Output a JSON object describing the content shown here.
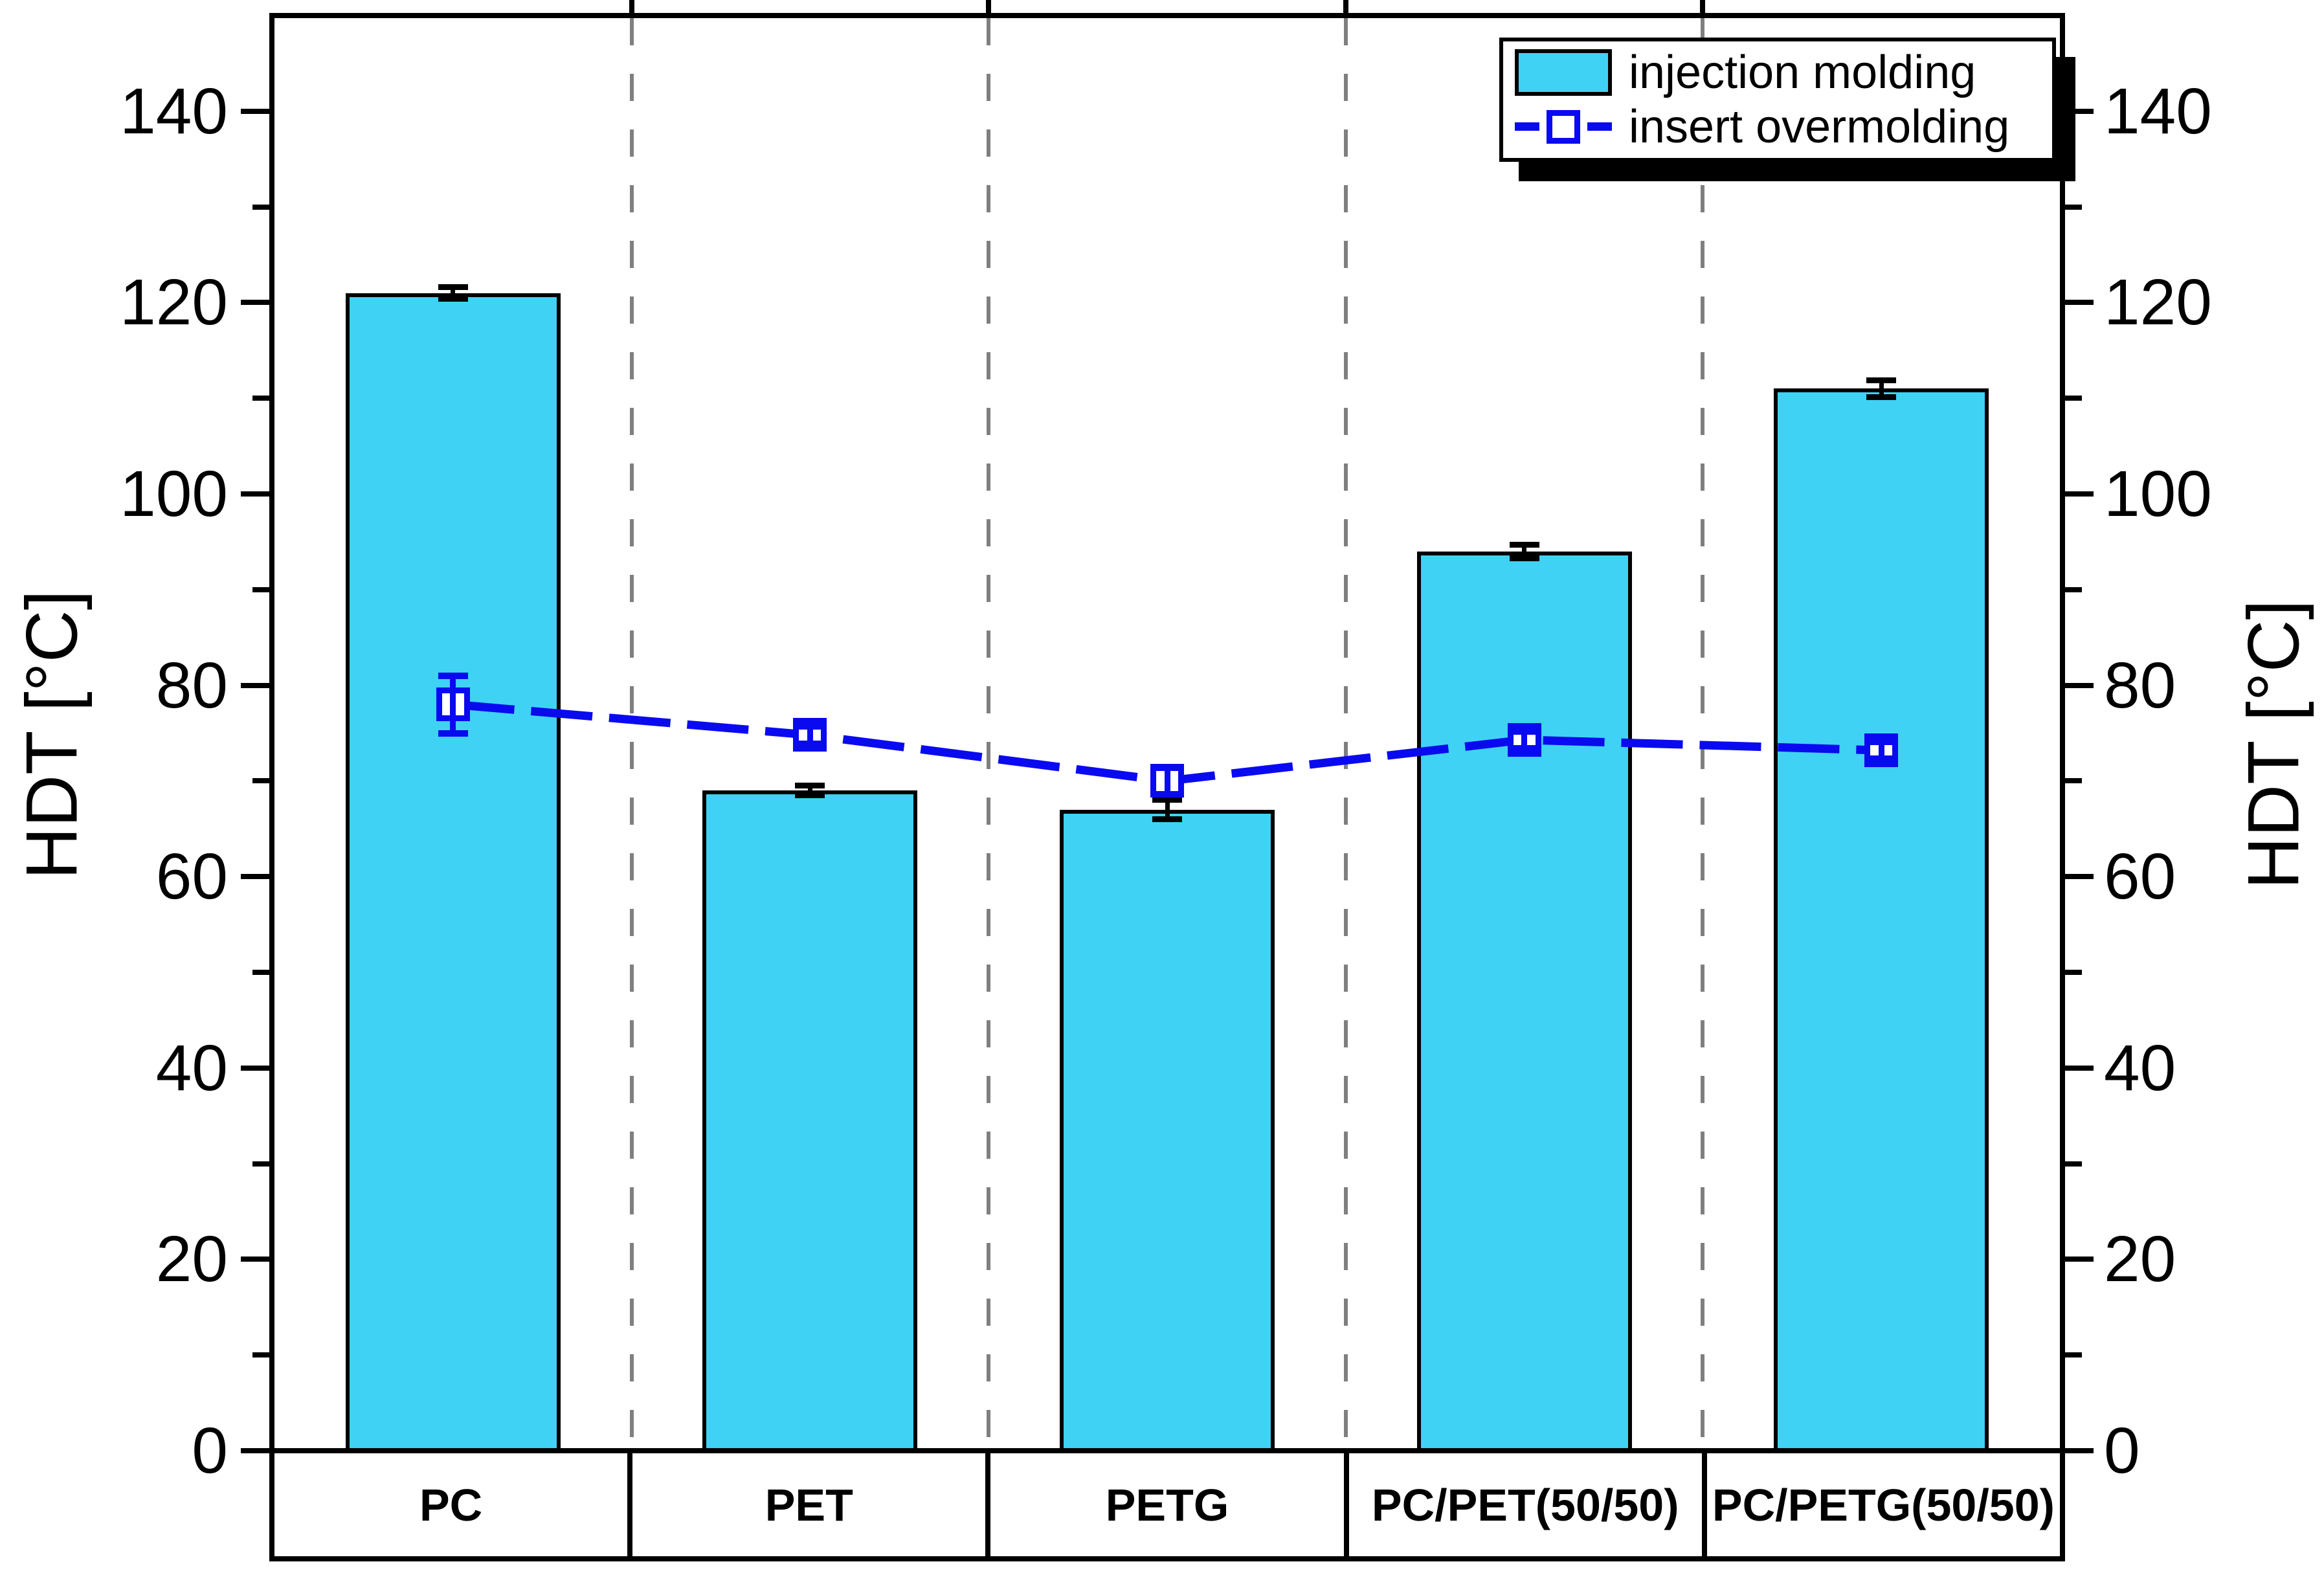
{
  "chart_data": {
    "type": "bar",
    "title": "",
    "categories": [
      "PC",
      "PET",
      "PETG",
      "PC/PET(50/50)",
      "PC/PETG(50/50)"
    ],
    "series": [
      {
        "name": "injection molding",
        "type": "bar",
        "color": "#3fd2f5",
        "values": [
          121,
          69,
          67,
          94,
          111
        ],
        "errors": [
          0.6,
          0.5,
          1.0,
          0.7,
          0.9
        ]
      },
      {
        "name": "insert overmolding",
        "type": "line-scatter",
        "color": "#0a0af0",
        "marker": "open-square",
        "line_style": "dashed",
        "values": [
          78,
          74.8,
          70,
          74.3,
          73.2
        ],
        "errors": [
          3.0,
          0.9,
          1.4,
          0.9,
          0.9
        ]
      }
    ],
    "ylabel": "HDT [°C]",
    "ylabel_right": "HDT [°C]",
    "ylim": [
      0,
      150
    ],
    "yticks": [
      0,
      20,
      40,
      60,
      80,
      100,
      120,
      140
    ],
    "ytick_labels": [
      "0",
      "20",
      "40",
      "60",
      "80",
      "100",
      "120",
      "140"
    ],
    "yminor_step": 10,
    "grid": "dashed vertical separators between categories",
    "legend_position": "top-right"
  },
  "legend": {
    "items": [
      {
        "label": "injection molding",
        "marker": "bar-swatch"
      },
      {
        "label": "insert overmolding",
        "marker": "line-square-marker"
      }
    ]
  },
  "colors": {
    "bar_fill": "#3fd2f5",
    "line": "#0a0af0",
    "grid": "#7f7f7f",
    "frame": "#000000",
    "background": "#ffffff"
  }
}
